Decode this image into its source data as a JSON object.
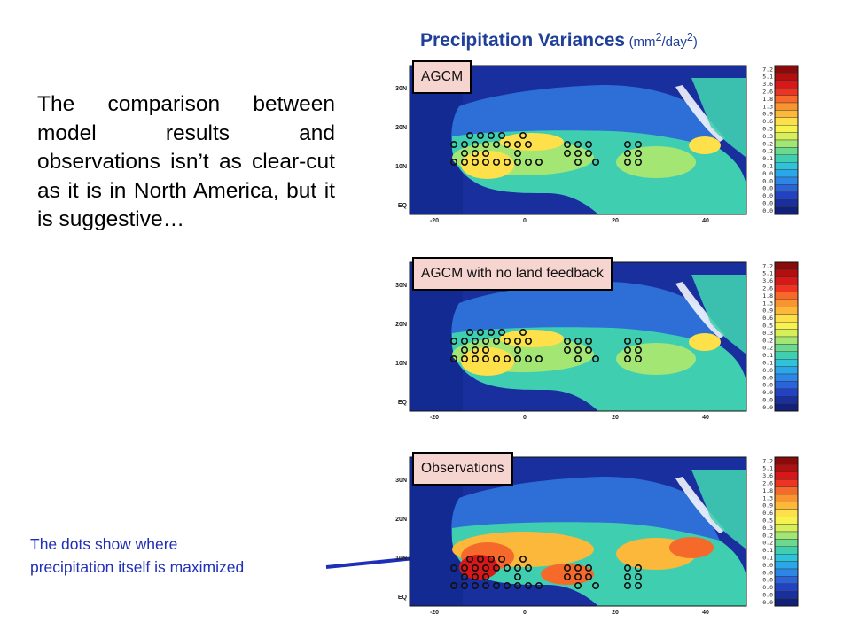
{
  "title": {
    "main": "Precipitation Variances",
    "unit_open": "(mm",
    "unit_sup1": "2",
    "unit_mid": "/day",
    "unit_sup2": "2",
    "unit_close": ")"
  },
  "body_text": "The comparison between model results and observations isn’t as clear-cut as it is in North America, but it is suggestive…",
  "note": {
    "line1": "The dots show where",
    "line2": "precipitation itself is maximized"
  },
  "panels": [
    {
      "label": "AGCM"
    },
    {
      "label": "AGCM with no land feedback"
    },
    {
      "label": "Observations"
    }
  ],
  "map_axes": {
    "lat_labels": [
      "30N",
      "20N",
      "10N",
      "EQ"
    ],
    "lon_labels": [
      "-20",
      "0",
      "20",
      "40"
    ]
  },
  "colorbar_ticks": [
    "7.2",
    "5.1",
    "3.6",
    "2.6",
    "1.8",
    "1.3",
    "0.9",
    "0.6",
    "0.5",
    "0.3",
    "0.2",
    "0.2",
    "0.1",
    "0.1",
    "0.0",
    "0.0",
    "0.0",
    "0.0",
    "0.0",
    "0.0"
  ],
  "colors": {
    "title_blue": "#1f3f9a",
    "note_blue": "#1e2fb8",
    "label_bg": "#f6d4d0",
    "ocean": "#1a2f9e"
  }
}
